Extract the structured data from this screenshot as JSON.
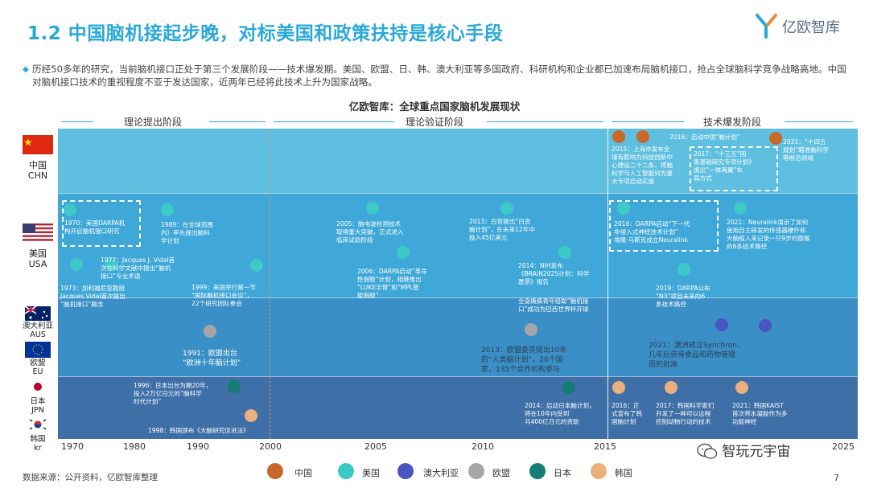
{
  "title": "1.2 中国脑机接起步晚，对标美国和政策扶持是核心手段",
  "logo_text": "亿欧智库",
  "intro": "历经50多年的研究，当前脑机接口正处于第三个发展阶段——技术爆发期。美国、欧盟、日、韩、澳大利亚等多国政府、科研机构和企业都已加速布局脑机接口，抢占全球脑科学竞争战略高地。中国对脑机接口技术的重视程度不亚于发达国家，近两年已经将此技术上升为国家战略。",
  "chart_title": "亿欧智库：全球重点国家脑机发展现状",
  "phases": [
    "理论提出阶段",
    "理论验证阶段",
    "技术爆发阶段"
  ],
  "countries": {
    "china": {
      "name": "中国",
      "code": "CHN"
    },
    "usa": {
      "name": "美国",
      "code": "USA"
    },
    "aus": {
      "name": "澳大利亚",
      "code": "AUS"
    },
    "eu": {
      "name": "欧盟",
      "code": "EU"
    },
    "jpn": {
      "name": "日本",
      "code": "JPN"
    },
    "kr": {
      "name": "韩国",
      "code": "kr"
    }
  },
  "events": {
    "cn_2015": "2015：上海市发布全\n球有影响力科技创新中\n心建设二十二条，将脑\n科学与人工智能列为重\n大专项启动实施",
    "cn_2016a": "2016：启动中国“脑计划”",
    "cn_2016b": "2017：“十三五”国\n家基础研究专项计划》\n提出“一体两翼”布\n局方式",
    "cn_2021": "2021：“十四五\n规划”瞄准脑科学\n等前沿领域",
    "us_1970": "1970：美国DARPA机\n构开启脑机接口研究",
    "us_1973": "1973：加利福尼亚教授\nJacques Vidal首次提出\n“脑机接口”概念",
    "us_1977": "1977：Jacques J. Vidal首\n次在科学文献中提出“脑机\n接口”专业术语",
    "us_1989": "1989：在全球范围\n内）率先提出脑科\n学计划",
    "us_1999": "1999：美国举行第一节\n“国际脑机接口会议”，\n22个研究团队参会",
    "us_2005": "2005：脑电波检测技术\n取得重大突破，正式进入\n临床试验阶段",
    "us_2006": "2006：DARPA启动“革命\n性假肢”计划，相继推出\n“LUKE手臂”和“MPL智\n能假肢”",
    "us_2013": "2013：白宫提出“白宫\n脑计划”，在未来12年中\n投入45亿美元",
    "us_2014a": "2014：NIH发布\n《BRAIN2025计划：科学\n愿景》报告",
    "us_2014b": "全身瘫痪青年借助“脑机接\n口”成功为巴西世界杯开球",
    "us_2016": "2016：DARPA启动“下一代\n非侵入式神经技术计划”\n埃隆·马斯克成立Neuralink",
    "us_2019": "2019：DARPA公布\n“N3”项目未来的6\n条技术路径",
    "us_2021": "2021：Neuralink演示了如何\n使用自主研发的传感器硬件和\n大脑植入来记录一只9岁的猕猴\n的6条技术路径",
    "eu_1991": "1991：欧盟出台\n“欧洲十年脑计划”",
    "eu_2013": "2013：欧盟委员提出10年\n的“人类脑计划”，26个国\n家，135个合作机构参与",
    "aus_2021": "2021：澳洲成立Synchron，\n几年后获得食品和药物管理\n局的批准",
    "jp_1996": "1996：日本出台为期20年，\n投入2万亿日元的“脑科学\n时代计划”",
    "jp_2014": "2014：启动日本脑计划，\n将在10年内受到\n共400亿日元的资助",
    "kr_1998": "1998：韩国颁布《大脑研究促进法》",
    "kr_2016": "2016：正\n式宣布了韩\n国脑计划",
    "kr_2017": "2017：韩国科学家们\n开发了一种可以远程\n控制动物行动的技术",
    "kr_2021": "2021：韩国KAIST\n首次将水凝胶作为多\n功能神经"
  },
  "year_ticks": [
    "1970",
    "1980",
    "1990",
    "2000",
    "2005",
    "2010",
    "2015",
    "2025"
  ],
  "legend": [
    {
      "label": "中国",
      "color": "#c8692a"
    },
    {
      "label": "美国",
      "color": "#3ec9c9"
    },
    {
      "label": "澳大利亚",
      "color": "#4a55c0"
    },
    {
      "label": "欧盟",
      "color": "#a6a6a6"
    },
    {
      "label": "日本",
      "color": "#167d73"
    },
    {
      "label": "韩国",
      "color": "#eab07d"
    }
  ],
  "colors": {
    "accent": "#2aa9d8",
    "band_china": "#5fbfe0",
    "band_usa": "#3fa8d8",
    "band_aus_eu": "#3a8fc6",
    "band_jpn_kr": "#3e6fa6"
  },
  "source": "数据来源：公开资料，亿欧智库整理",
  "wechat": "智玩元宇宙",
  "page_number": "7"
}
